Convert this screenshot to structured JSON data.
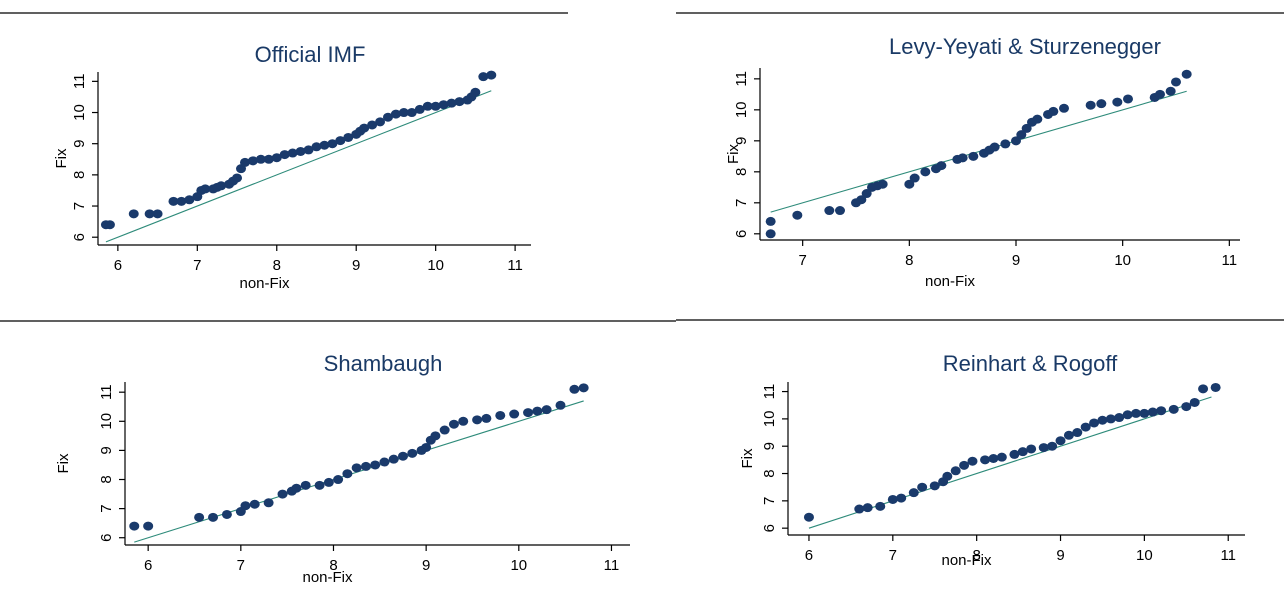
{
  "colors": {
    "marker": "#1a3a6b",
    "reference_line": "#2e8b7a",
    "title": "#1a3a66"
  },
  "chart_data": [
    {
      "type": "scatter",
      "title": "Official IMF",
      "xlabel": "non-Fix",
      "ylabel": "Fix",
      "xlim": [
        5.75,
        11.2
      ],
      "ylim": [
        5.75,
        11.3
      ],
      "xticks": [
        6,
        7,
        8,
        9,
        10,
        11
      ],
      "yticks": [
        6,
        7,
        8,
        9,
        10,
        11
      ],
      "reference_line": {
        "x": [
          5.85,
          10.7
        ],
        "y": [
          5.85,
          10.7
        ]
      },
      "series": [
        {
          "x": [
            5.85,
            5.9,
            6.2,
            6.4,
            6.5,
            6.7,
            6.8,
            6.9,
            7.0,
            7.05,
            7.1,
            7.2,
            7.25,
            7.3,
            7.4,
            7.45,
            7.5,
            7.55,
            7.6,
            7.7,
            7.8,
            7.9,
            8.0,
            8.1,
            8.2,
            8.3,
            8.4,
            8.5,
            8.6,
            8.7,
            8.8,
            8.9,
            9.0,
            9.05,
            9.1,
            9.2,
            9.3,
            9.4,
            9.5,
            9.6,
            9.7,
            9.8,
            9.9,
            10.0,
            10.1,
            10.2,
            10.3,
            10.4,
            10.45,
            10.5,
            10.6,
            10.7
          ],
          "y": [
            6.4,
            6.4,
            6.75,
            6.75,
            6.75,
            7.15,
            7.15,
            7.2,
            7.3,
            7.5,
            7.55,
            7.55,
            7.6,
            7.65,
            7.7,
            7.8,
            7.9,
            8.2,
            8.4,
            8.45,
            8.5,
            8.5,
            8.55,
            8.65,
            8.7,
            8.75,
            8.8,
            8.9,
            8.95,
            9.0,
            9.1,
            9.2,
            9.3,
            9.4,
            9.5,
            9.6,
            9.7,
            9.85,
            9.95,
            10.0,
            10.0,
            10.1,
            10.2,
            10.2,
            10.25,
            10.3,
            10.35,
            10.4,
            10.5,
            10.65,
            11.15,
            11.2
          ]
        }
      ]
    },
    {
      "type": "scatter",
      "title": "Levy-Yeyati & Sturzenegger",
      "xlabel": "non-Fix",
      "ylabel": "Fix",
      "xlim": [
        6.6,
        11.1
      ],
      "ylim": [
        5.8,
        11.35
      ],
      "xticks": [
        7,
        8,
        9,
        10,
        11
      ],
      "yticks": [
        6,
        7,
        8,
        9,
        10,
        11
      ],
      "reference_line": {
        "x": [
          6.7,
          10.6
        ],
        "y": [
          6.7,
          10.6
        ]
      },
      "series": [
        {
          "x": [
            6.7,
            6.7,
            6.95,
            7.25,
            7.35,
            7.5,
            7.55,
            7.6,
            7.65,
            7.7,
            7.75,
            8.0,
            8.05,
            8.15,
            8.25,
            8.3,
            8.45,
            8.5,
            8.6,
            8.7,
            8.75,
            8.8,
            8.9,
            9.0,
            9.05,
            9.1,
            9.15,
            9.2,
            9.3,
            9.35,
            9.45,
            9.7,
            9.8,
            9.95,
            10.05,
            10.3,
            10.35,
            10.45,
            10.5,
            10.6
          ],
          "y": [
            6.0,
            6.4,
            6.6,
            6.75,
            6.75,
            7.0,
            7.1,
            7.3,
            7.5,
            7.55,
            7.6,
            7.6,
            7.8,
            8.0,
            8.1,
            8.2,
            8.4,
            8.45,
            8.5,
            8.6,
            8.7,
            8.8,
            8.9,
            9.0,
            9.2,
            9.4,
            9.6,
            9.7,
            9.85,
            9.95,
            10.05,
            10.15,
            10.2,
            10.25,
            10.35,
            10.4,
            10.5,
            10.6,
            10.9,
            11.15
          ]
        }
      ]
    },
    {
      "type": "scatter",
      "title": "Shambaugh",
      "xlabel": "non-Fix",
      "ylabel": "Fix",
      "xlim": [
        5.75,
        11.2
      ],
      "ylim": [
        5.75,
        11.35
      ],
      "xticks": [
        6,
        7,
        8,
        9,
        10,
        11
      ],
      "yticks": [
        6,
        7,
        8,
        9,
        10,
        11
      ],
      "reference_line": {
        "x": [
          5.85,
          10.7
        ],
        "y": [
          5.85,
          10.7
        ]
      },
      "series": [
        {
          "x": [
            5.85,
            6.0,
            6.55,
            6.7,
            6.85,
            7.0,
            7.05,
            7.15,
            7.3,
            7.45,
            7.55,
            7.6,
            7.7,
            7.85,
            7.95,
            8.05,
            8.15,
            8.25,
            8.35,
            8.45,
            8.55,
            8.65,
            8.75,
            8.85,
            8.95,
            9.0,
            9.05,
            9.1,
            9.2,
            9.3,
            9.4,
            9.55,
            9.65,
            9.8,
            9.95,
            10.1,
            10.2,
            10.3,
            10.45,
            10.6,
            10.7
          ],
          "y": [
            6.4,
            6.4,
            6.7,
            6.7,
            6.8,
            6.9,
            7.1,
            7.15,
            7.2,
            7.5,
            7.6,
            7.7,
            7.8,
            7.8,
            7.9,
            8.0,
            8.2,
            8.4,
            8.45,
            8.5,
            8.6,
            8.7,
            8.8,
            8.9,
            9.0,
            9.1,
            9.35,
            9.5,
            9.7,
            9.9,
            10.0,
            10.05,
            10.1,
            10.2,
            10.25,
            10.3,
            10.35,
            10.4,
            10.55,
            11.1,
            11.15
          ]
        }
      ]
    },
    {
      "type": "scatter",
      "title": "Reinhart & Rogoff",
      "xlabel": "non-Fix",
      "ylabel": "Fix",
      "xlim": [
        5.75,
        11.2
      ],
      "ylim": [
        5.75,
        11.35
      ],
      "xticks": [
        6,
        7,
        8,
        9,
        10,
        11
      ],
      "yticks": [
        6,
        7,
        8,
        9,
        10,
        11
      ],
      "reference_line": {
        "x": [
          6.0,
          10.8
        ],
        "y": [
          6.0,
          10.8
        ]
      },
      "series": [
        {
          "x": [
            6.0,
            6.6,
            6.7,
            6.85,
            7.0,
            7.1,
            7.25,
            7.35,
            7.5,
            7.6,
            7.65,
            7.75,
            7.85,
            7.95,
            8.1,
            8.2,
            8.3,
            8.45,
            8.55,
            8.65,
            8.8,
            8.9,
            9.0,
            9.1,
            9.2,
            9.3,
            9.4,
            9.5,
            9.6,
            9.7,
            9.8,
            9.9,
            10.0,
            10.1,
            10.2,
            10.35,
            10.5,
            10.6,
            10.7,
            10.85
          ],
          "y": [
            6.4,
            6.7,
            6.75,
            6.8,
            7.05,
            7.1,
            7.3,
            7.5,
            7.55,
            7.7,
            7.9,
            8.1,
            8.3,
            8.45,
            8.5,
            8.55,
            8.6,
            8.7,
            8.8,
            8.9,
            8.95,
            9.0,
            9.2,
            9.4,
            9.5,
            9.7,
            9.85,
            9.95,
            10.0,
            10.05,
            10.15,
            10.2,
            10.2,
            10.25,
            10.3,
            10.35,
            10.45,
            10.6,
            11.1,
            11.15
          ]
        }
      ]
    }
  ]
}
